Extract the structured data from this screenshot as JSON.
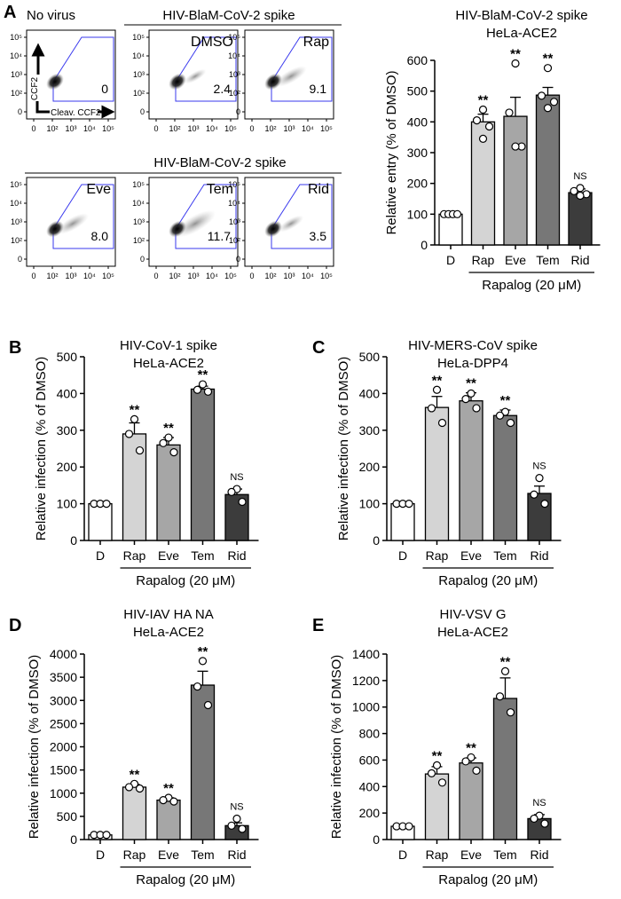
{
  "figure": {
    "flow": {
      "panel_letter": "A",
      "no_virus_label": "No virus",
      "group_title_top": "HIV-BlaM-CoV-2 spike",
      "group_title_bottom": "HIV-BlaM-CoV-2 spike",
      "y_axis_label": "CCF2",
      "x_axis_label": "Cleav. CCF2",
      "x_ticks": [
        "0",
        "10²",
        "10³",
        "10⁴",
        "10⁵"
      ],
      "y_ticks": [
        "10⁵",
        "10⁴",
        "10³",
        "10²",
        "0"
      ],
      "plots": [
        {
          "label": "",
          "value": "0"
        },
        {
          "label": "DMSO",
          "value": "2.4"
        },
        {
          "label": "Rap",
          "value": "9.1"
        },
        {
          "label": "Eve",
          "value": "8.0"
        },
        {
          "label": "Tem",
          "value": "11.7"
        },
        {
          "label": "Rid",
          "value": "3.5"
        }
      ]
    },
    "bar_colors": [
      "#ffffff",
      "#d4d4d4",
      "#a6a6a6",
      "#777777",
      "#3c3c3c"
    ]
  },
  "chart_data": [
    {
      "panel": "",
      "type": "bar",
      "title": "HIV-BlaM-CoV-2 spike",
      "subtitle": "HeLa-ACE2",
      "ylabel": "Relative entry (% of DMSO)",
      "categories": [
        "D",
        "Rap",
        "Eve",
        "Tem",
        "Rid"
      ],
      "group_label": "Rapalog (20 μM)",
      "ylim": [
        0,
        600
      ],
      "yticks": [
        0,
        100,
        200,
        300,
        400,
        500,
        600
      ],
      "values": [
        100,
        400,
        418,
        487,
        170
      ],
      "errors": [
        0,
        25,
        62,
        25,
        12
      ],
      "points": [
        [
          100,
          100,
          100,
          100
        ],
        [
          440,
          405,
          385,
          345
        ],
        [
          590,
          430,
          320,
          320
        ],
        [
          575,
          485,
          465,
          445
        ],
        [
          185,
          175,
          165,
          160
        ]
      ],
      "significance": [
        "",
        "**",
        "**",
        "**",
        "NS"
      ]
    },
    {
      "panel": "B",
      "type": "bar",
      "title": "HIV-CoV-1 spike",
      "subtitle": "HeLa-ACE2",
      "ylabel": "Relative infection (% of DMSO)",
      "categories": [
        "D",
        "Rap",
        "Eve",
        "Tem",
        "Rid"
      ],
      "group_label": "Rapalog (20 μM)",
      "ylim": [
        0,
        500
      ],
      "yticks": [
        0,
        100,
        200,
        300,
        400,
        500
      ],
      "values": [
        100,
        290,
        260,
        412,
        125
      ],
      "errors": [
        0,
        30,
        20,
        8,
        15
      ],
      "points": [
        [
          100,
          100,
          100
        ],
        [
          330,
          290,
          245
        ],
        [
          280,
          265,
          240
        ],
        [
          425,
          410,
          405
        ],
        [
          140,
          132,
          105
        ]
      ],
      "significance": [
        "",
        "**",
        "**",
        "**",
        "NS"
      ]
    },
    {
      "panel": "C",
      "type": "bar",
      "title": "HIV-MERS-CoV spike",
      "subtitle": "HeLa-DPP4",
      "ylabel": "Relative infection (% of DMSO)",
      "categories": [
        "D",
        "Rap",
        "Eve",
        "Tem",
        "Rid"
      ],
      "group_label": "Rapalog (20 μM)",
      "ylim": [
        0,
        500
      ],
      "yticks": [
        0,
        100,
        200,
        300,
        400,
        500
      ],
      "values": [
        100,
        362,
        380,
        340,
        128
      ],
      "errors": [
        0,
        30,
        22,
        15,
        20
      ],
      "points": [
        [
          100,
          100,
          100
        ],
        [
          410,
          360,
          320
        ],
        [
          400,
          385,
          360
        ],
        [
          350,
          340,
          320
        ],
        [
          170,
          125,
          100
        ]
      ],
      "significance": [
        "",
        "**",
        "**",
        "**",
        "NS"
      ]
    },
    {
      "panel": "D",
      "type": "bar",
      "title": "HIV-IAV HA NA",
      "subtitle": "HeLa-ACE2",
      "ylabel": "Relative infection (% of DMSO)",
      "categories": [
        "D",
        "Rap",
        "Eve",
        "Tem",
        "Rid"
      ],
      "group_label": "Rapalog (20 μM)",
      "ylim": [
        0,
        4000
      ],
      "yticks": [
        0,
        500,
        1000,
        1500,
        2000,
        2500,
        3000,
        3500,
        4000
      ],
      "values": [
        100,
        1130,
        850,
        3330,
        300
      ],
      "errors": [
        0,
        60,
        50,
        300,
        60
      ],
      "points": [
        [
          100,
          100,
          100
        ],
        [
          1200,
          1130,
          1100
        ],
        [
          900,
          850,
          820
        ],
        [
          3850,
          3300,
          2900
        ],
        [
          450,
          300,
          230
        ]
      ],
      "significance": [
        "",
        "**",
        "**",
        "**",
        "NS"
      ]
    },
    {
      "panel": "E",
      "type": "bar",
      "title": "HIV-VSV G",
      "subtitle": "HeLa-ACE2",
      "ylabel": "Relative infection (% of DMSO)",
      "categories": [
        "D",
        "Rap",
        "Eve",
        "Tem",
        "Rid"
      ],
      "group_label": "Rapalog (20 μM)",
      "ylim": [
        0,
        1400
      ],
      "yticks": [
        0,
        200,
        400,
        600,
        800,
        1000,
        1200,
        1400
      ],
      "values": [
        100,
        495,
        578,
        1065,
        158
      ],
      "errors": [
        0,
        55,
        38,
        155,
        30
      ],
      "points": [
        [
          100,
          100,
          100
        ],
        [
          560,
          500,
          430
        ],
        [
          620,
          590,
          520
        ],
        [
          1270,
          1080,
          960
        ],
        [
          180,
          158,
          120
        ]
      ],
      "significance": [
        "",
        "**",
        "**",
        "**",
        "NS"
      ]
    }
  ]
}
